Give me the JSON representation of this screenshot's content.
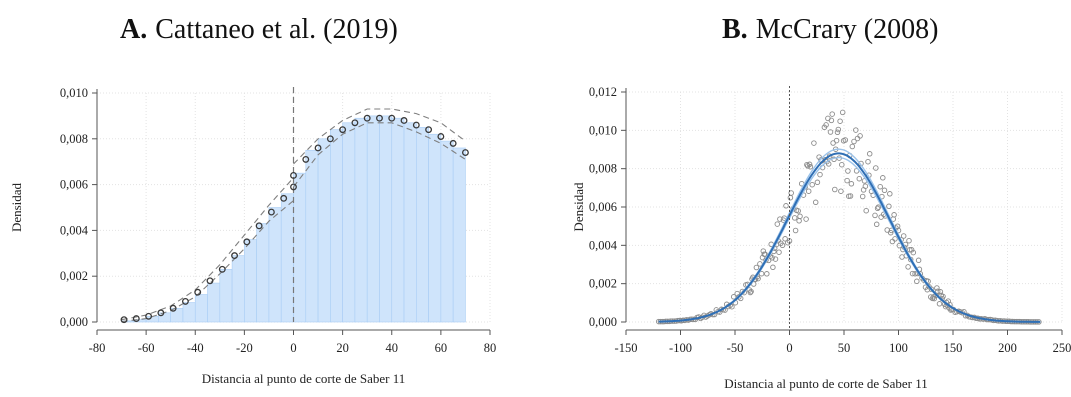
{
  "panels": [
    {
      "letter": "A.",
      "title": "Cattaneo et al. (2019)"
    },
    {
      "letter": "B.",
      "title": "McCrary (2008)"
    }
  ],
  "chart_data": [
    {
      "type": "scatter",
      "title": "A. Cattaneo et al. (2019)",
      "xlabel": "Distancia al punto de corte de Saber 11",
      "ylabel": "Densidad",
      "xlim": [
        -80,
        80
      ],
      "ylim": [
        0,
        0.01
      ],
      "x_ticks": [
        -80,
        -60,
        -40,
        -20,
        0,
        20,
        40,
        60,
        80
      ],
      "x_tick_labels": [
        "-80",
        "-60",
        "-40",
        "-20",
        "0",
        "20",
        "40",
        "60",
        "80"
      ],
      "y_ticks": [
        0,
        0.002,
        0.004,
        0.006,
        0.008,
        0.01
      ],
      "y_tick_labels": [
        "0,000",
        "0,002",
        "0,004",
        "0,006",
        "0,008",
        "0,010"
      ],
      "cutoff": 0,
      "grid": true,
      "colors": {
        "histogram": "#cfe4fb",
        "histogram_edge": "#a9cdf5",
        "ci": "#7f7f7f",
        "points": "#3a3a3a",
        "cutoff": "#777777"
      },
      "histogram": {
        "left_x": [
          -70,
          -65,
          -60,
          -55,
          -50,
          -45,
          -40,
          -35,
          -30,
          -25,
          -20,
          -15,
          -10,
          -5
        ],
        "left_y": [
          5e-05,
          0.0001,
          0.00025,
          0.0004,
          0.0006,
          0.00085,
          0.0012,
          0.0017,
          0.0023,
          0.0029,
          0.0036,
          0.0043,
          0.005,
          0.0056
        ],
        "right_x": [
          0,
          5,
          10,
          15,
          20,
          25,
          30,
          35,
          40,
          45,
          50,
          55,
          60,
          65
        ],
        "right_y": [
          0.0065,
          0.0075,
          0.008,
          0.0084,
          0.0087,
          0.0089,
          0.009,
          0.009,
          0.0089,
          0.0087,
          0.0085,
          0.0082,
          0.0079,
          0.0076
        ]
      },
      "points_left": {
        "x": [
          -69,
          -64,
          -59,
          -54,
          -49,
          -44,
          -39,
          -34,
          -29,
          -24,
          -19,
          -14,
          -9,
          -4,
          0
        ],
        "y": [
          0.0001,
          0.00015,
          0.00025,
          0.0004,
          0.0006,
          0.0009,
          0.0013,
          0.0018,
          0.0023,
          0.0029,
          0.0035,
          0.0042,
          0.0048,
          0.0054,
          0.0059
        ]
      },
      "points_right": {
        "x": [
          0,
          5,
          10,
          15,
          20,
          25,
          30,
          35,
          40,
          45,
          50,
          55,
          60,
          65,
          70
        ],
        "y": [
          0.0064,
          0.0071,
          0.0076,
          0.008,
          0.0084,
          0.0087,
          0.0089,
          0.0089,
          0.0089,
          0.0088,
          0.0086,
          0.0084,
          0.0081,
          0.0078,
          0.0074
        ]
      },
      "ci_upper_left": [
        [
          -70,
          0.0001
        ],
        [
          -60,
          0.0003
        ],
        [
          -50,
          0.0007
        ],
        [
          -40,
          0.0014
        ],
        [
          -30,
          0.0025
        ],
        [
          -20,
          0.0038
        ],
        [
          -10,
          0.0051
        ],
        [
          0,
          0.0063
        ]
      ],
      "ci_lower_left": [
        [
          -70,
          2e-05
        ],
        [
          -60,
          0.00015
        ],
        [
          -50,
          0.0005
        ],
        [
          -40,
          0.0011
        ],
        [
          -30,
          0.0021
        ],
        [
          -20,
          0.0032
        ],
        [
          -10,
          0.0044
        ],
        [
          0,
          0.0053
        ]
      ],
      "ci_upper_right": [
        [
          0,
          0.0069
        ],
        [
          10,
          0.008
        ],
        [
          20,
          0.0088
        ],
        [
          30,
          0.0093
        ],
        [
          40,
          0.0093
        ],
        [
          50,
          0.0091
        ],
        [
          60,
          0.0087
        ],
        [
          70,
          0.0079
        ]
      ],
      "ci_lower_right": [
        [
          0,
          0.0059
        ],
        [
          10,
          0.0073
        ],
        [
          20,
          0.0082
        ],
        [
          30,
          0.0087
        ],
        [
          40,
          0.0087
        ],
        [
          50,
          0.0083
        ],
        [
          60,
          0.0078
        ],
        [
          70,
          0.0071
        ]
      ]
    },
    {
      "type": "scatter",
      "title": "B. McCrary (2008)",
      "xlabel": "Distancia al punto de corte de Saber 11",
      "ylabel": "Densidad",
      "xlim": [
        -150,
        250
      ],
      "ylim": [
        0,
        0.012
      ],
      "x_ticks": [
        -150,
        -100,
        -50,
        0,
        50,
        100,
        150,
        200,
        250
      ],
      "x_tick_labels": [
        "-150",
        "-100",
        "-50",
        "0",
        "50",
        "100",
        "150",
        "200",
        "250"
      ],
      "y_ticks": [
        0,
        0.002,
        0.004,
        0.006,
        0.008,
        0.01,
        0.012
      ],
      "y_tick_labels": [
        "0,000",
        "0,002",
        "0,004",
        "0,006",
        "0,008",
        "0,010",
        "0,012"
      ],
      "cutoff": 0,
      "grid": true,
      "colors": {
        "fit": "#2f6fb5",
        "band": "#9cc3ea",
        "points": "#8c8c8c",
        "cutoff": "#555555"
      },
      "density_peak_x": 45,
      "density_peak_y": 0.0088,
      "density_sd": 47,
      "scatter_range_x": [
        -120,
        230
      ],
      "scatter_spread_peak": 0.0022
    }
  ]
}
